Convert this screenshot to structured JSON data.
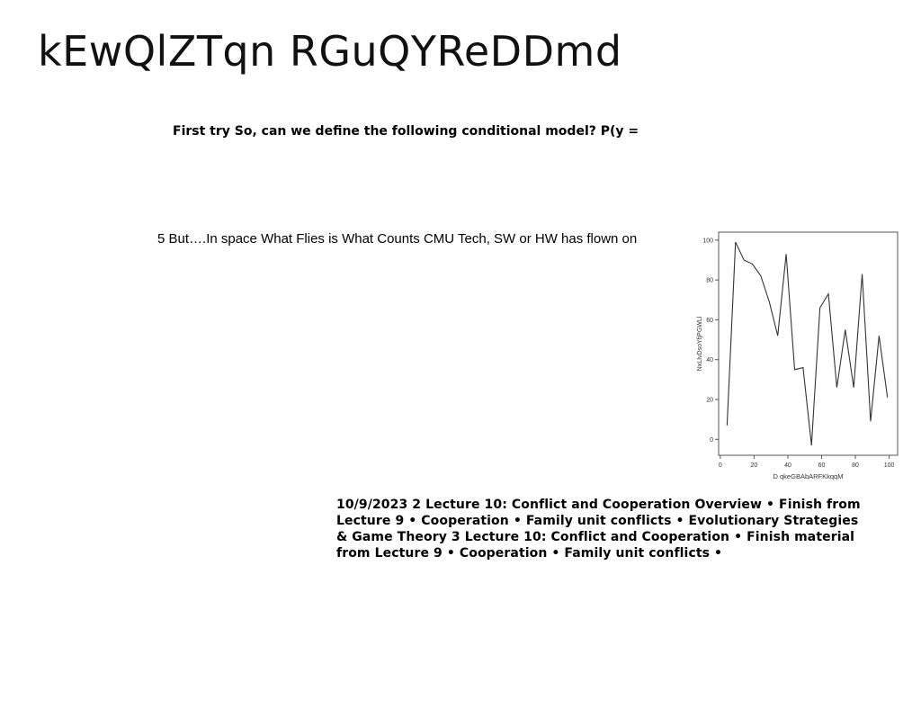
{
  "page": {
    "title": "kEwQlZTqn RGuQYReDDmd",
    "text_block_1": "First try So, can we define the following conditional model? P(y =",
    "text_block_2": "5 But….In space What Flies is What Counts CMU Tech, SW or HW has flown on",
    "text_block_3": "10/9/2023 2 Lecture 10: Conflict and Cooperation Overview • Finish from Lecture 9 • Cooperation • Family unit conflicts • Evolutionary Strategies & Game Theory 3 Lecture 10: Conflict and Cooperation • Finish material from Lecture 9 • Cooperation • Family unit conflicts •"
  },
  "chart_data": {
    "type": "line",
    "xlabel": "D qkeGBAbARFKkqqM",
    "ylabel": "NxLIvDsoYfjPGWLl",
    "xlim": [
      -1,
      105
    ],
    "ylim": [
      -8,
      104
    ],
    "xticks": [
      0,
      20,
      40,
      60,
      80,
      100
    ],
    "yticks": [
      0,
      20,
      40,
      60,
      80,
      100
    ],
    "grid": false,
    "x": [
      4,
      9,
      14,
      19,
      24,
      29,
      34,
      39,
      44,
      49,
      54,
      59,
      64,
      69,
      74,
      79,
      84,
      89,
      94,
      99
    ],
    "y": [
      7,
      99,
      90,
      88,
      82,
      69,
      52,
      93,
      35,
      36,
      -3,
      66,
      73,
      26,
      55,
      26,
      83,
      9,
      52,
      21
    ],
    "line_color": "#333333"
  }
}
